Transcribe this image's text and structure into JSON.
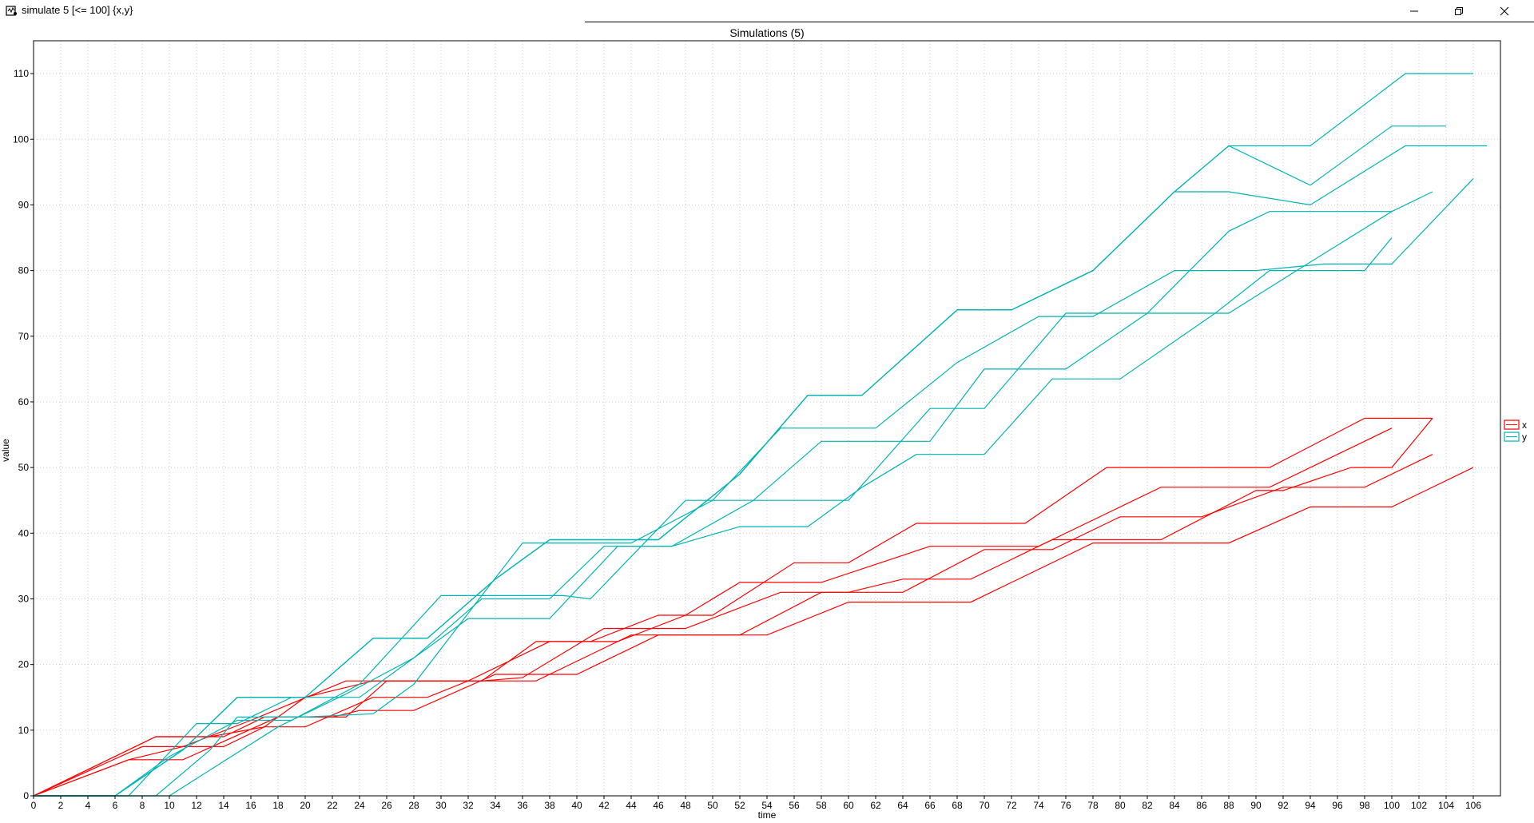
{
  "window": {
    "title": "simulate 5 [<= 100] {x,y}",
    "icon": "uppaal-app-icon",
    "minimize_icon": "minimize-icon",
    "maximize_icon": "restore-icon",
    "close_icon": "close-icon"
  },
  "colors": {
    "x": "#ff0000",
    "y": "#00b4b4",
    "grid": "#c8c8c8",
    "axis": "#000000",
    "background": "#ffffff"
  },
  "chart_data": {
    "type": "line",
    "title": "Simulations (5)",
    "xlabel": "time",
    "ylabel": "value",
    "xlim": [
      0,
      108
    ],
    "ylim": [
      0,
      115
    ],
    "xticks": [
      0,
      2,
      4,
      6,
      8,
      10,
      12,
      14,
      16,
      18,
      20,
      22,
      24,
      26,
      28,
      30,
      32,
      34,
      36,
      38,
      40,
      42,
      44,
      46,
      48,
      50,
      52,
      54,
      56,
      58,
      60,
      62,
      64,
      66,
      68,
      70,
      72,
      74,
      76,
      78,
      80,
      82,
      84,
      86,
      88,
      90,
      92,
      94,
      96,
      98,
      100,
      102,
      104,
      106
    ],
    "yticks": [
      0,
      10,
      20,
      30,
      40,
      50,
      60,
      70,
      80,
      90,
      100,
      110
    ],
    "grid": true,
    "legend": {
      "position": "right",
      "entries": [
        "x",
        "y"
      ]
    },
    "series": [
      {
        "name": "x",
        "points": [
          [
            0,
            0
          ],
          [
            9,
            9
          ],
          [
            14,
            9
          ],
          [
            17,
            12
          ],
          [
            22,
            12
          ],
          [
            24,
            13
          ],
          [
            28,
            13
          ],
          [
            34,
            18.5
          ],
          [
            40,
            18.5
          ],
          [
            46,
            24.5
          ],
          [
            54,
            24.5
          ],
          [
            60,
            29.5
          ],
          [
            69,
            29.5
          ],
          [
            78,
            38.5
          ],
          [
            88,
            38.5
          ],
          [
            94,
            44
          ],
          [
            100,
            44
          ],
          [
            106,
            50
          ]
        ]
      },
      {
        "name": "x",
        "points": [
          [
            0,
            0
          ],
          [
            8,
            7.5
          ],
          [
            14,
            7.5
          ],
          [
            17,
            10.5
          ],
          [
            20,
            10.5
          ],
          [
            25,
            15
          ],
          [
            29,
            15
          ],
          [
            32,
            17.5
          ],
          [
            37,
            17.5
          ],
          [
            44,
            24.5
          ],
          [
            52,
            24.5
          ],
          [
            58,
            31
          ],
          [
            64,
            31
          ],
          [
            70,
            37.5
          ],
          [
            75,
            37.5
          ],
          [
            80,
            42.5
          ],
          [
            86,
            42.5
          ],
          [
            92,
            47
          ],
          [
            98,
            47
          ],
          [
            103,
            52
          ]
        ]
      },
      {
        "name": "x",
        "points": [
          [
            0,
            0
          ],
          [
            7,
            5.5
          ],
          [
            11,
            5.5
          ],
          [
            18,
            12
          ],
          [
            23,
            12
          ],
          [
            26,
            17.5
          ],
          [
            32,
            17.5
          ],
          [
            38,
            23.5
          ],
          [
            43,
            23.5
          ],
          [
            48,
            27.5
          ],
          [
            52,
            32.5
          ],
          [
            58,
            32.5
          ],
          [
            66,
            38
          ],
          [
            71,
            38
          ],
          [
            74,
            38
          ],
          [
            83,
            47
          ],
          [
            91,
            47
          ],
          [
            100,
            56
          ]
        ]
      },
      {
        "name": "x",
        "points": [
          [
            0,
            0
          ],
          [
            7,
            5.5
          ],
          [
            11,
            7.5
          ],
          [
            16,
            11.5
          ],
          [
            23,
            17.5
          ],
          [
            33,
            17.5
          ],
          [
            36,
            18
          ],
          [
            42,
            25.5
          ],
          [
            48,
            25.5
          ],
          [
            55,
            31
          ],
          [
            60,
            31
          ],
          [
            64,
            33
          ],
          [
            69,
            33
          ],
          [
            75,
            39
          ],
          [
            83,
            39
          ],
          [
            90,
            46.5
          ],
          [
            92,
            46.5
          ],
          [
            97,
            50
          ],
          [
            100,
            50
          ],
          [
            103,
            57.5
          ]
        ]
      },
      {
        "name": "x",
        "points": [
          [
            0,
            0
          ],
          [
            9,
            9
          ],
          [
            13,
            9
          ],
          [
            17,
            10.5
          ],
          [
            20,
            15
          ],
          [
            25,
            17.5
          ],
          [
            33,
            17.5
          ],
          [
            37,
            23.5
          ],
          [
            41,
            23.5
          ],
          [
            46,
            27.5
          ],
          [
            50,
            27.5
          ],
          [
            56,
            35.5
          ],
          [
            60,
            35.5
          ],
          [
            65,
            41.5
          ],
          [
            73,
            41.5
          ],
          [
            79,
            50
          ],
          [
            91,
            50
          ],
          [
            98,
            57.5
          ],
          [
            103,
            57.5
          ]
        ]
      },
      {
        "name": "y",
        "points": [
          [
            0,
            0
          ],
          [
            6,
            0
          ],
          [
            10,
            6
          ],
          [
            15,
            11.5
          ],
          [
            19,
            11.5
          ],
          [
            24,
            17
          ],
          [
            30,
            30.5
          ],
          [
            39,
            30.5
          ],
          [
            41,
            30
          ],
          [
            48,
            45
          ],
          [
            53,
            45
          ],
          [
            58,
            54
          ],
          [
            66,
            54
          ],
          [
            70,
            65
          ],
          [
            76,
            65
          ],
          [
            82,
            73.5
          ],
          [
            88,
            73.5
          ],
          [
            93,
            80
          ],
          [
            100,
            89
          ],
          [
            103,
            92
          ]
        ]
      },
      {
        "name": "y",
        "points": [
          [
            0,
            0
          ],
          [
            10,
            0
          ],
          [
            18,
            10.5
          ],
          [
            23,
            15.5
          ],
          [
            28,
            21
          ],
          [
            33,
            30
          ],
          [
            38,
            30
          ],
          [
            42,
            38
          ],
          [
            47,
            38
          ],
          [
            52,
            41
          ],
          [
            57,
            41
          ],
          [
            61,
            47
          ],
          [
            65,
            52
          ],
          [
            70,
            52
          ],
          [
            75,
            63.5
          ],
          [
            80,
            63.5
          ],
          [
            87,
            73.5
          ],
          [
            91,
            80
          ],
          [
            98,
            80
          ],
          [
            100,
            85
          ]
        ]
      },
      {
        "name": "y",
        "points": [
          [
            0,
            0
          ],
          [
            7,
            0
          ],
          [
            12,
            11
          ],
          [
            15,
            11
          ],
          [
            19,
            15
          ],
          [
            24,
            15
          ],
          [
            32,
            27
          ],
          [
            38,
            27
          ],
          [
            43,
            38
          ],
          [
            47,
            38
          ],
          [
            53,
            45
          ],
          [
            60,
            45
          ],
          [
            66,
            59
          ],
          [
            70,
            59
          ],
          [
            76,
            73.5
          ],
          [
            82,
            73.5
          ],
          [
            88,
            86
          ],
          [
            91,
            89
          ],
          [
            100,
            89
          ]
        ]
      },
      {
        "name": "y",
        "points": [
          [
            0,
            0
          ],
          [
            9,
            0
          ],
          [
            13,
            7
          ],
          [
            15,
            12
          ],
          [
            20,
            12
          ],
          [
            25,
            12.5
          ],
          [
            28,
            17
          ],
          [
            33,
            30.5
          ],
          [
            36,
            38.5
          ],
          [
            44,
            38.5
          ],
          [
            50,
            45
          ],
          [
            55,
            56
          ],
          [
            62,
            56
          ],
          [
            68,
            66
          ],
          [
            74,
            73
          ],
          [
            78,
            73
          ],
          [
            84,
            80
          ],
          [
            90,
            80
          ],
          [
            95,
            81
          ],
          [
            100,
            81
          ],
          [
            106,
            94
          ]
        ]
      },
      {
        "name": "y",
        "points": [
          [
            0,
            0
          ],
          [
            6,
            0
          ],
          [
            11,
            7
          ],
          [
            15,
            15
          ],
          [
            20,
            15
          ],
          [
            25,
            24
          ],
          [
            29,
            24
          ],
          [
            34,
            33
          ],
          [
            38,
            39
          ],
          [
            46,
            39
          ],
          [
            52,
            49
          ],
          [
            57,
            61
          ],
          [
            61,
            61
          ],
          [
            68,
            74
          ],
          [
            72,
            74
          ],
          [
            78,
            80
          ],
          [
            84,
            92
          ],
          [
            88,
            99
          ],
          [
            94,
            99
          ],
          [
            101,
            110
          ],
          [
            106,
            110
          ]
        ]
      },
      {
        "name": "y",
        "points": [
          [
            0,
            0
          ],
          [
            6,
            0
          ],
          [
            11,
            7
          ],
          [
            15,
            15
          ],
          [
            20,
            15
          ],
          [
            25,
            24
          ],
          [
            29,
            24
          ],
          [
            34,
            33
          ],
          [
            38,
            39
          ],
          [
            46,
            39
          ],
          [
            52,
            49
          ],
          [
            57,
            61
          ],
          [
            61,
            61
          ],
          [
            68,
            74
          ],
          [
            72,
            74
          ],
          [
            78,
            80
          ],
          [
            84,
            92
          ],
          [
            88,
            99
          ],
          [
            94,
            93
          ],
          [
            100,
            102
          ],
          [
            104,
            102
          ]
        ]
      },
      {
        "name": "y",
        "points": [
          [
            0,
            0
          ],
          [
            6,
            0
          ],
          [
            11,
            7
          ],
          [
            15,
            15
          ],
          [
            20,
            15
          ],
          [
            25,
            24
          ],
          [
            29,
            24
          ],
          [
            34,
            33
          ],
          [
            38,
            39
          ],
          [
            46,
            39
          ],
          [
            52,
            49
          ],
          [
            57,
            61
          ],
          [
            61,
            61
          ],
          [
            68,
            74
          ],
          [
            72,
            74
          ],
          [
            78,
            80
          ],
          [
            84,
            92
          ],
          [
            88,
            92
          ],
          [
            94,
            90
          ],
          [
            101,
            99
          ],
          [
            107,
            99
          ]
        ]
      }
    ]
  }
}
